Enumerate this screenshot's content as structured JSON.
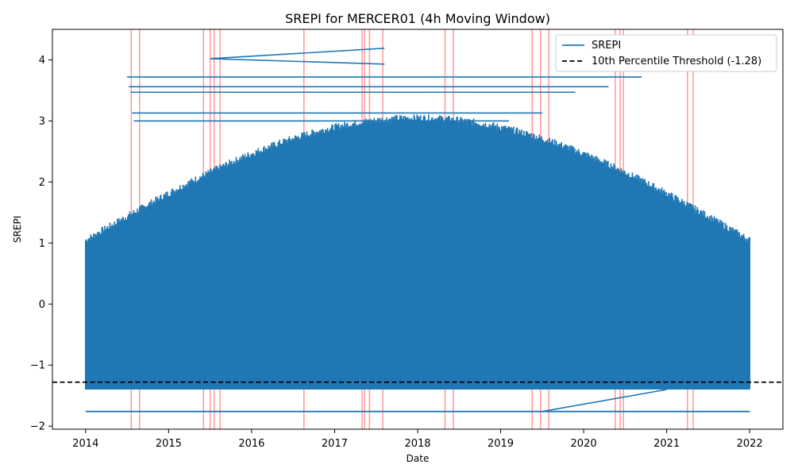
{
  "chart_data": {
    "type": "line",
    "title": "SREPI for MERCER01 (4h Moving Window)",
    "xlabel": "Date",
    "ylabel": "SREPI",
    "x_ticks": [
      "2014",
      "2015",
      "2016",
      "2017",
      "2018",
      "2019",
      "2020",
      "2021",
      "2022"
    ],
    "y_ticks": [
      "−2",
      "−1",
      "0",
      "1",
      "2",
      "3",
      "4"
    ],
    "xlim": [
      2013.6,
      2022.4
    ],
    "ylim": [
      -2.05,
      4.5
    ],
    "grid": false,
    "legend_position": "upper right",
    "series": [
      {
        "name": "SREPI",
        "color": "#1f77b4",
        "value_range": [
          -1.76,
          4.19
        ],
        "dense_band": [
          -1.4,
          3.05
        ],
        "x_range": [
          2014.0,
          2022.0
        ]
      }
    ],
    "threshold": {
      "label": "10th Percentile Threshold (-1.28)",
      "value": -1.28,
      "color": "#000000",
      "style": "dashed"
    },
    "highlight_dates": [
      2014.55,
      2014.65,
      2015.42,
      2015.5,
      2015.55,
      2015.62,
      2016.63,
      2017.33,
      2017.36,
      2017.42,
      2017.58,
      2018.33,
      2018.43,
      2019.38,
      2019.48,
      2019.58,
      2020.38,
      2020.44,
      2020.48,
      2021.25,
      2021.32
    ],
    "highlight_color": "#ff0000"
  }
}
